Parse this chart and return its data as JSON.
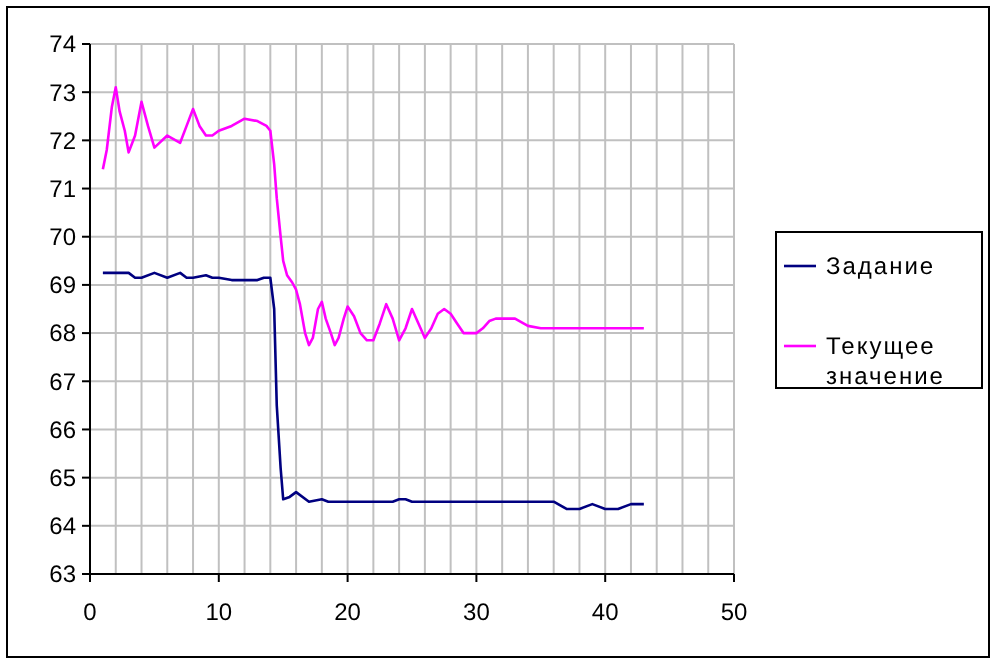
{
  "chart_data": {
    "type": "line",
    "xlim": [
      0,
      50
    ],
    "ylim": [
      63,
      74
    ],
    "xticks": [
      0,
      10,
      20,
      30,
      40,
      50
    ],
    "yticks": [
      63,
      64,
      65,
      66,
      67,
      68,
      69,
      70,
      71,
      72,
      73,
      74
    ],
    "grid": true,
    "legend": "right",
    "marker": "none",
    "line_style": "solid",
    "series": [
      {
        "name": "Задание",
        "color": "#000080",
        "x": [
          1,
          3,
          3.5,
          4,
          5,
          6,
          7,
          7.5,
          8,
          9,
          9.5,
          10,
          11,
          13,
          13.5,
          14,
          14.3,
          14.5,
          14.8,
          15,
          15.5,
          16,
          17,
          18,
          18.5,
          23.5,
          24,
          24.5,
          25,
          36,
          37,
          38,
          39,
          40,
          41,
          42,
          43
        ],
        "values": [
          69.25,
          69.25,
          69.15,
          69.15,
          69.25,
          69.15,
          69.25,
          69.15,
          69.15,
          69.2,
          69.15,
          69.15,
          69.1,
          69.1,
          69.15,
          69.15,
          68.5,
          66.5,
          65.2,
          64.55,
          64.6,
          64.7,
          64.5,
          64.55,
          64.5,
          64.5,
          64.55,
          64.55,
          64.5,
          64.5,
          64.35,
          64.35,
          64.45,
          64.35,
          64.35,
          64.45,
          64.45
        ]
      },
      {
        "name": "Текущее значение",
        "color": "#ff00ff",
        "x": [
          1,
          1.3,
          1.7,
          2,
          2.3,
          2.7,
          3,
          3.5,
          4,
          4.5,
          5,
          6,
          7,
          7.5,
          8,
          8.5,
          9,
          9.5,
          10,
          11,
          12,
          13,
          13.7,
          14,
          14.3,
          14.5,
          14.8,
          15,
          15.3,
          15.7,
          16,
          16.3,
          16.7,
          17,
          17.3,
          17.7,
          18,
          18.3,
          18.7,
          19,
          19.3,
          19.7,
          20,
          20.5,
          21,
          21.5,
          22,
          22.5,
          23,
          23.5,
          24,
          24.5,
          25,
          25.5,
          26,
          26.5,
          27,
          27.5,
          28,
          28.5,
          29,
          30,
          30.5,
          31,
          31.5,
          33,
          34,
          35,
          43
        ],
        "values": [
          71.4,
          71.8,
          72.7,
          73.1,
          72.6,
          72.2,
          71.75,
          72.1,
          72.8,
          72.3,
          71.85,
          72.1,
          71.95,
          72.3,
          72.65,
          72.3,
          72.1,
          72.1,
          72.2,
          72.3,
          72.45,
          72.4,
          72.3,
          72.2,
          71.5,
          70.8,
          70,
          69.5,
          69.2,
          69.05,
          68.9,
          68.6,
          68,
          67.75,
          67.9,
          68.5,
          68.65,
          68.3,
          68,
          67.75,
          67.9,
          68.3,
          68.55,
          68.35,
          68,
          67.85,
          67.85,
          68.2,
          68.6,
          68.3,
          67.85,
          68.1,
          68.5,
          68.2,
          67.9,
          68.1,
          68.4,
          68.5,
          68.4,
          68.2,
          68,
          68,
          68.1,
          68.25,
          68.3,
          68.3,
          68.15,
          68.1,
          68.1
        ]
      }
    ]
  }
}
